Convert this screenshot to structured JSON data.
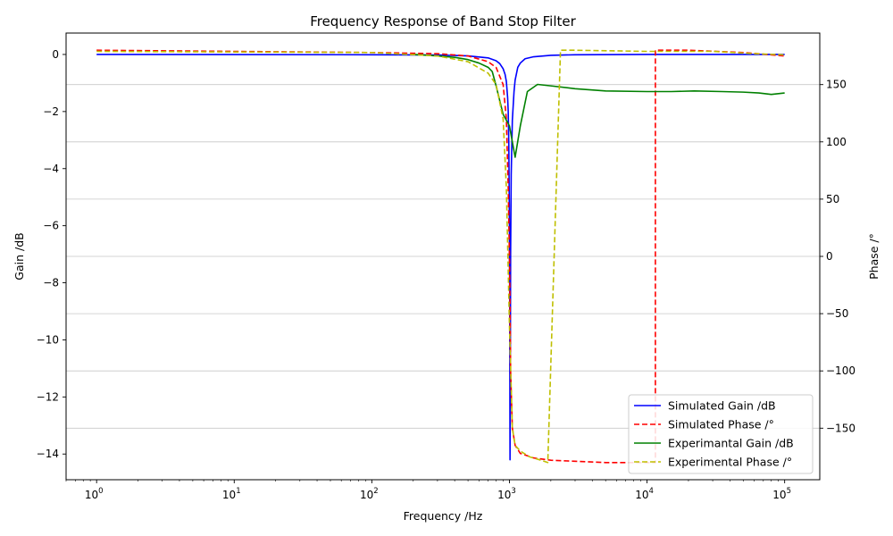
{
  "chart_data": {
    "type": "line",
    "title": "Frequency Response of Band Stop Filter",
    "xlabel": "Frequency /Hz",
    "ylabel_left": "Gain /dB",
    "ylabel_right": "Phase /°",
    "xscale": "log",
    "xlim": [
      0.6,
      180000
    ],
    "ylim_left": [
      -14.9,
      0.75
    ],
    "ylim_right": [
      -195,
      195
    ],
    "x_ticks": [
      1,
      10,
      100,
      1000,
      10000,
      100000
    ],
    "x_tick_labels": [
      [
        "10",
        "0"
      ],
      [
        "10",
        "1"
      ],
      [
        "10",
        "2"
      ],
      [
        "10",
        "3"
      ],
      [
        "10",
        "4"
      ],
      [
        "10",
        "5"
      ]
    ],
    "y_left_ticks": [
      0,
      -2,
      -4,
      -6,
      -8,
      -10,
      -12,
      -14
    ],
    "y_left_tick_labels": [
      "0",
      "−2",
      "−4",
      "−6",
      "−8",
      "−10",
      "−12",
      "−14"
    ],
    "y_right_ticks": [
      150,
      100,
      50,
      0,
      -50,
      -100,
      -150
    ],
    "y_right_tick_labels": [
      "150",
      "100",
      "50",
      "0",
      "−50",
      "−100",
      "−150"
    ],
    "grid": "horizontal (right axis)",
    "legend_position": "lower-right",
    "series": [
      {
        "name": "Simulated  Gain /dB",
        "axis": "left",
        "color": "#0000ff",
        "style": "solid",
        "x": [
          1,
          100,
          300,
          500,
          700,
          800,
          850,
          900,
          930,
          950,
          970,
          980,
          990,
          1000,
          1005,
          1010,
          1015,
          1020,
          1030,
          1050,
          1080,
          1100,
          1150,
          1200,
          1300,
          1500,
          2000,
          3000,
          10000,
          100000
        ],
        "y": [
          0,
          -0.01,
          -0.02,
          -0.05,
          -0.12,
          -0.22,
          -0.32,
          -0.5,
          -0.7,
          -0.95,
          -1.5,
          -2,
          -3.2,
          -6,
          -9,
          -14.2,
          -11,
          -7,
          -4.2,
          -2.3,
          -1.3,
          -0.9,
          -0.45,
          -0.3,
          -0.15,
          -0.08,
          -0.03,
          -0.01,
          0,
          0
        ]
      },
      {
        "name": "Simulated Phase /°",
        "axis": "right",
        "color": "#ff0000",
        "style": "dashed",
        "x": [
          1,
          100,
          300,
          500,
          700,
          800,
          900,
          950,
          980,
          1000,
          1010,
          1020,
          1050,
          1100,
          1200,
          1500,
          2000,
          5000,
          11500,
          11500,
          20000,
          50000,
          100000
        ],
        "y": [
          180,
          178,
          177,
          175,
          170,
          165,
          150,
          120,
          60,
          0,
          -40,
          -100,
          -150,
          -165,
          -172,
          -176,
          -178,
          -180,
          -180,
          180,
          180,
          178,
          175
        ]
      },
      {
        "name": "Experimantal Gain /dB",
        "axis": "left",
        "color": "#008000",
        "style": "solid",
        "x": [
          200,
          300,
          400,
          500,
          600,
          700,
          750,
          800,
          900,
          1000,
          1100,
          1200,
          1350,
          1600,
          2000,
          3000,
          5000,
          10000,
          15000,
          22000,
          35000,
          50000,
          65000,
          80000,
          100000
        ],
        "y": [
          0,
          -0.05,
          -0.1,
          -0.18,
          -0.3,
          -0.45,
          -0.6,
          -1.1,
          -2.1,
          -2.5,
          -3.6,
          -2.5,
          -1.3,
          -1.05,
          -1.1,
          -1.2,
          -1.28,
          -1.3,
          -1.3,
          -1.28,
          -1.3,
          -1.32,
          -1.35,
          -1.4,
          -1.35
        ]
      },
      {
        "name": "Experimental Phase /°",
        "axis": "right",
        "color": "#bfbf00",
        "style": "dashed",
        "x": [
          1,
          100,
          300,
          500,
          700,
          800,
          900,
          950,
          1000,
          1050,
          1100,
          1200,
          1400,
          1700,
          1900,
          2350,
          3000,
          10000,
          30000,
          60000,
          100000
        ],
        "y": [
          179,
          178,
          175,
          170,
          160,
          150,
          120,
          60,
          -60,
          -150,
          -165,
          -170,
          -175,
          -178,
          -180,
          180,
          180,
          179,
          179,
          177,
          176
        ]
      }
    ]
  }
}
